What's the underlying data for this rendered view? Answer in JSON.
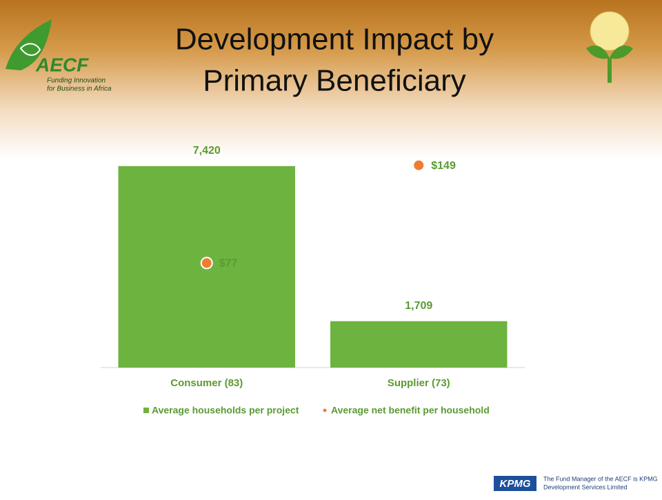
{
  "slide": {
    "logo_name": "AECF",
    "logo_tagline_1": "Funding Innovation",
    "logo_tagline_2": "for Business in Africa",
    "footer_brand": "KPMG",
    "footer_line_1": "The Fund Manager of the AECF is KPMG",
    "footer_line_2": "Development Services Limited"
  },
  "chart_data": {
    "type": "bar",
    "title_lines": [
      "Development Impact by",
      "Primary Beneficiary"
    ],
    "categories": [
      "Consumer (83)",
      "Supplier (73)"
    ],
    "series": [
      {
        "name": "Average households per project",
        "color": "#6db33f",
        "values": [
          7420,
          1709
        ],
        "value_labels": [
          "7,420",
          "1,709"
        ]
      },
      {
        "name": "Average net benefit per household",
        "type": "scatter",
        "axis": "y2",
        "color": "#ed7d31",
        "values": [
          77,
          149
        ],
        "value_labels": [
          "$77",
          "$149"
        ]
      }
    ],
    "ylim": [
      0,
      8000
    ],
    "y2lim": [
      0,
      160
    ],
    "legend": "bottom"
  }
}
